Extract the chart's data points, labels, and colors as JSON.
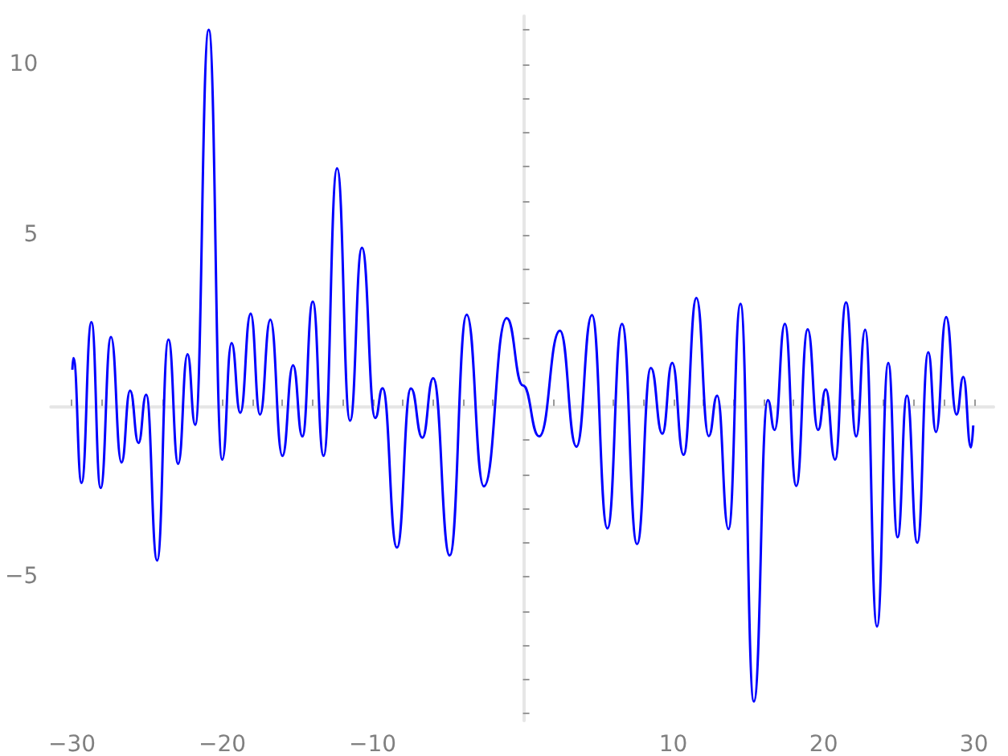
{
  "chart_data": {
    "type": "line",
    "color": "#0000ff",
    "marker": "none",
    "line_style": "solid",
    "x": [
      -29.97,
      -29.9,
      -29.36,
      -28.7,
      -28.09,
      -27.4,
      -26.7,
      -26.13,
      -25.57,
      -25.06,
      -24.33,
      -23.58,
      -22.93,
      -22.31,
      -21.8,
      -20.9,
      -20.0,
      -19.38,
      -18.8,
      -18.11,
      -17.49,
      -16.8,
      -16.0,
      -15.29,
      -14.67,
      -13.98,
      -13.26,
      -12.36,
      -11.5,
      -10.71,
      -9.82,
      -9.34,
      -8.38,
      -7.45,
      -6.69,
      -5.97,
      -4.87,
      -3.74,
      -2.6,
      -1.08,
      0.0,
      1.08,
      2.46,
      3.56,
      4.59,
      5.62,
      6.59,
      7.59,
      8.51,
      9.27,
      9.93,
      10.68,
      11.54,
      12.36,
      12.92,
      13.67,
      14.47,
      15.36,
      16.29,
      16.74,
      17.42,
      18.18,
      18.94,
      19.63,
      20.14,
      20.76,
      21.49,
      22.17,
      22.76,
      23.55,
      24.3,
      24.92,
      25.54,
      26.23,
      26.96,
      27.47,
      28.15,
      28.84,
      29.29,
      29.8,
      29.95
    ],
    "values": [
      1.06,
      1.4,
      -2.25,
      2.45,
      -2.4,
      2.02,
      -1.65,
      0.45,
      -1.08,
      0.33,
      -4.52,
      1.94,
      -1.69,
      1.51,
      -0.55,
      11.0,
      -1.57,
      1.84,
      -0.2,
      2.7,
      -0.25,
      2.52,
      -1.46,
      1.19,
      -0.89,
      3.05,
      -1.46,
      6.95,
      -0.43,
      4.63,
      -0.35,
      0.52,
      -4.14,
      0.51,
      -0.93,
      0.81,
      -4.37,
      2.67,
      -2.35,
      2.57,
      0.6,
      -0.89,
      2.2,
      -1.19,
      2.66,
      -3.58,
      2.4,
      -4.04,
      1.11,
      -0.81,
      1.26,
      -1.43,
      3.16,
      -0.88,
      0.3,
      -3.6,
      2.99,
      -8.64,
      0.17,
      -0.7,
      2.4,
      -2.34,
      2.24,
      -0.7,
      0.48,
      -1.57,
      3.03,
      -0.89,
      2.23,
      -6.45,
      1.26,
      -3.84,
      0.3,
      -4.0,
      1.57,
      -0.76,
      2.6,
      -0.25,
      0.85,
      -1.21,
      -0.57
    ],
    "xlim": [
      -31.4,
      31.3
    ],
    "ylim": [
      -9.2,
      11.4
    ],
    "xticks": [
      -30,
      {
        "value": -28,
        "label": null
      },
      {
        "value": -26,
        "label": null
      },
      {
        "value": -24,
        "label": null
      },
      {
        "value": -22,
        "label": null
      },
      -20,
      {
        "value": -18,
        "label": null
      },
      {
        "value": -16,
        "label": null
      },
      {
        "value": -14,
        "label": null
      },
      {
        "value": -12,
        "label": null
      },
      -10,
      {
        "value": -8,
        "label": null
      },
      {
        "value": -6,
        "label": null
      },
      {
        "value": -4,
        "label": null
      },
      {
        "value": -2,
        "label": null
      },
      {
        "value": 2,
        "label": null
      },
      {
        "value": 4,
        "label": null
      },
      {
        "value": 6,
        "label": null
      },
      {
        "value": 8,
        "label": null
      },
      10,
      {
        "value": 12,
        "label": null
      },
      {
        "value": 14,
        "label": null
      },
      {
        "value": 16,
        "label": null
      },
      {
        "value": 18,
        "label": null
      },
      20,
      {
        "value": 22,
        "label": null
      },
      {
        "value": 24,
        "label": null
      },
      {
        "value": 26,
        "label": null
      },
      {
        "value": 28,
        "label": null
      },
      30
    ],
    "yticks": [
      {
        "value": -9,
        "label": null
      },
      {
        "value": -8,
        "label": null
      },
      {
        "value": -7,
        "label": null
      },
      {
        "value": -6,
        "label": null
      },
      -5,
      {
        "value": -4,
        "label": null
      },
      {
        "value": -3,
        "label": null
      },
      {
        "value": -2,
        "label": null
      },
      {
        "value": -1,
        "label": null
      },
      {
        "value": 1,
        "label": null
      },
      {
        "value": 2,
        "label": null
      },
      {
        "value": 3,
        "label": null
      },
      {
        "value": 4,
        "label": null
      },
      5,
      {
        "value": 6,
        "label": null
      },
      {
        "value": 7,
        "label": null
      },
      {
        "value": 8,
        "label": null
      },
      {
        "value": 9,
        "label": null
      },
      10,
      {
        "value": 11,
        "label": null
      }
    ]
  }
}
